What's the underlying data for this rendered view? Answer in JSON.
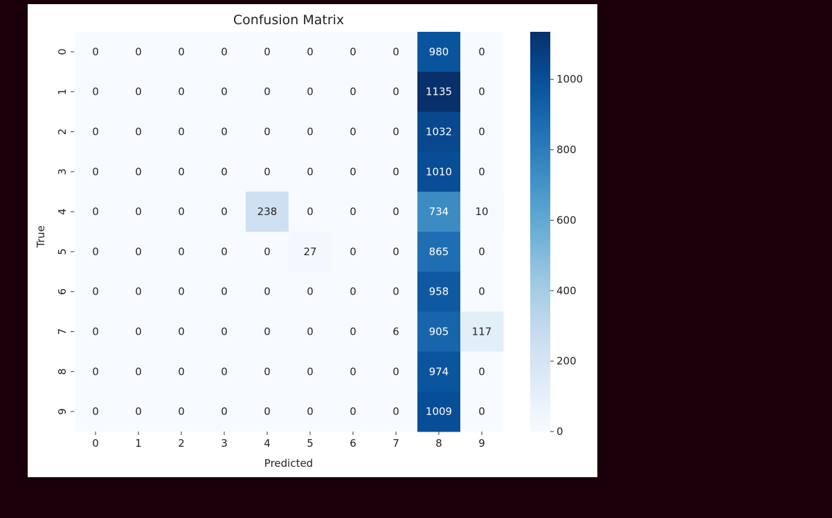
{
  "chart_data": {
    "type": "heatmap",
    "title": "Confusion Matrix",
    "xlabel": "Predicted",
    "ylabel": "True",
    "x_categories": [
      "0",
      "1",
      "2",
      "3",
      "4",
      "5",
      "6",
      "7",
      "8",
      "9"
    ],
    "y_categories": [
      "0",
      "1",
      "2",
      "3",
      "4",
      "5",
      "6",
      "7",
      "8",
      "9"
    ],
    "matrix": [
      [
        0,
        0,
        0,
        0,
        0,
        0,
        0,
        0,
        980,
        0
      ],
      [
        0,
        0,
        0,
        0,
        0,
        0,
        0,
        0,
        1135,
        0
      ],
      [
        0,
        0,
        0,
        0,
        0,
        0,
        0,
        0,
        1032,
        0
      ],
      [
        0,
        0,
        0,
        0,
        0,
        0,
        0,
        0,
        1010,
        0
      ],
      [
        0,
        0,
        0,
        0,
        238,
        0,
        0,
        0,
        734,
        10
      ],
      [
        0,
        0,
        0,
        0,
        0,
        27,
        0,
        0,
        865,
        0
      ],
      [
        0,
        0,
        0,
        0,
        0,
        0,
        0,
        0,
        958,
        0
      ],
      [
        0,
        0,
        0,
        0,
        0,
        0,
        0,
        6,
        905,
        117
      ],
      [
        0,
        0,
        0,
        0,
        0,
        0,
        0,
        0,
        974,
        0
      ],
      [
        0,
        0,
        0,
        0,
        0,
        0,
        0,
        0,
        1009,
        0
      ]
    ],
    "colormap": "Blues",
    "colorbar": {
      "min": 0,
      "max": 1135,
      "ticks": [
        0,
        200,
        400,
        600,
        800,
        1000
      ]
    },
    "colors": {
      "low": "#f7fbff",
      "high": "#08306b"
    }
  }
}
